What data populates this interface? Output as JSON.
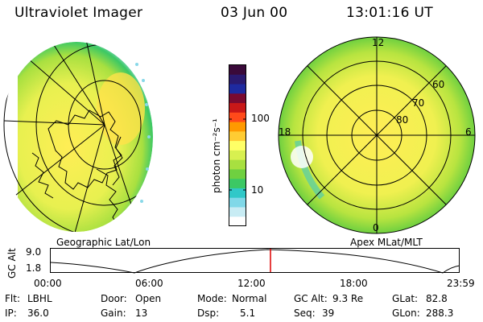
{
  "header": {
    "instrument": "Ultraviolet Imager",
    "date": "03 Jun 00",
    "time": "13:01:16 UT"
  },
  "colorbar": {
    "unit_label": "photon cm⁻²s⁻¹",
    "tick_labels": [
      "100",
      "10"
    ],
    "colors": [
      "#3a0a3a",
      "#2a1a70",
      "#1e2aa0",
      "#7a0a30",
      "#c81818",
      "#ff4a1a",
      "#ff9900",
      "#ffcc33",
      "#ffff66",
      "#d8f050",
      "#a8e040",
      "#6fd040",
      "#3cc864",
      "#30c8c8",
      "#80d8e8",
      "#c8ecf4",
      "#ffffff"
    ]
  },
  "geo_panel": {
    "label": "Geographic Lat/Lon"
  },
  "polar_panel": {
    "label": "Apex MLat/MLT",
    "mlt_labels": {
      "top": "12",
      "left": "18",
      "right": "6",
      "bottom": "0"
    },
    "lat_labels": [
      "60",
      "70",
      "80"
    ]
  },
  "altitude_plot": {
    "ylabel": "GC Alt",
    "y_ticks": [
      "9.0",
      "1.8"
    ],
    "x_ticks": [
      "00:00",
      "06:00",
      "12:00",
      "18:00",
      "23:59"
    ],
    "marker_color": "#dd0000"
  },
  "status": {
    "flt_label": "Flt:",
    "flt_value": "LBHL",
    "ip_label": "IP:",
    "ip_value": "36.0",
    "door_label": "Door:",
    "door_value": "Open",
    "gain_label": "Gain:",
    "gain_value": "13",
    "mode_label": "Mode:",
    "mode_value": "Normal",
    "dsp_label": "Dsp:",
    "dsp_value": "5.1",
    "gcalt_label": "GC Alt:",
    "gcalt_value": "9.3 Re",
    "seq_label": "Seq:",
    "seq_value": "39",
    "glat_label": "GLat:",
    "glat_value": "82.8",
    "glon_label": "GLon:",
    "glon_value": "288.3"
  }
}
